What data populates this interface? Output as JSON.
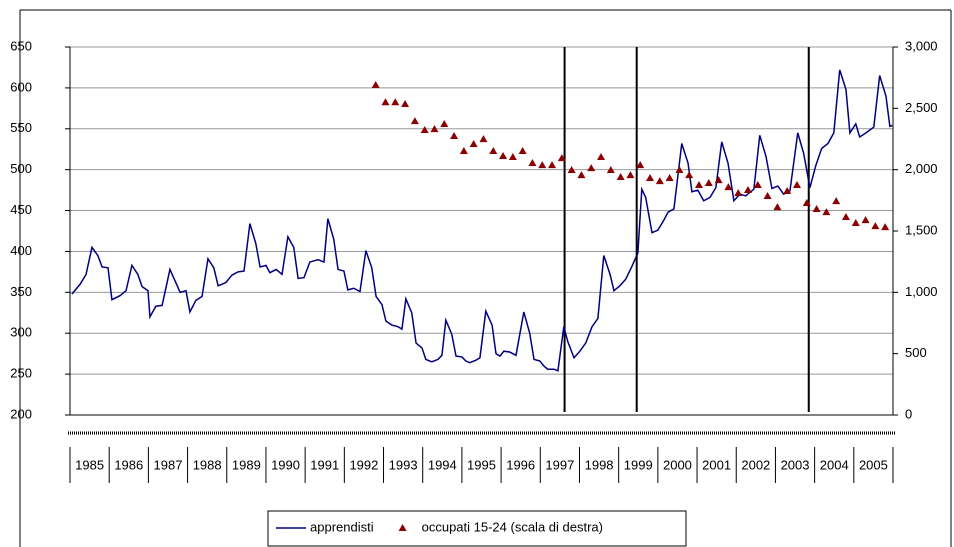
{
  "chart_data": {
    "type": "line",
    "categories": [
      "1985",
      "1986",
      "1987",
      "1988",
      "1989",
      "1990",
      "1991",
      "1992",
      "1993",
      "1994",
      "1995",
      "1996",
      "1997",
      "1998",
      "1999",
      "2000",
      "2001",
      "2002",
      "2003",
      "2004",
      "2005"
    ],
    "xlim": [
      1985,
      2006
    ],
    "ylim": [
      200,
      650
    ],
    "yticks": [
      200,
      250,
      300,
      350,
      400,
      450,
      500,
      550,
      600,
      650
    ],
    "y2lim": [
      0,
      3000
    ],
    "y2ticks": [
      0,
      500,
      {
        "value": 1000,
        "label": "1,000"
      },
      {
        "value": 1500,
        "label": "1,500"
      },
      {
        "value": 2000,
        "label": "2,000"
      },
      {
        "value": 2500,
        "label": "2,500"
      },
      {
        "value": 3000,
        "label": "3,000"
      }
    ],
    "grid": true,
    "vlines": [
      1997.62,
      1999.46,
      2003.85
    ],
    "series": [
      {
        "name": "apprendisti",
        "type": "line",
        "color": "#000080",
        "x": [
          1985.05,
          1985.26,
          1985.41,
          1985.56,
          1985.71,
          1985.82,
          1985.97,
          1986.07,
          1986.28,
          1986.43,
          1986.58,
          1986.73,
          1986.84,
          1986.99,
          1987.04,
          1987.19,
          1987.35,
          1987.55,
          1987.7,
          1987.81,
          1987.96,
          1988.06,
          1988.21,
          1988.37,
          1988.52,
          1988.67,
          1988.78,
          1988.98,
          1989.13,
          1989.29,
          1989.44,
          1989.59,
          1989.74,
          1989.85,
          1990,
          1990.1,
          1990.26,
          1990.41,
          1990.56,
          1990.71,
          1990.82,
          1990.97,
          1991.12,
          1991.33,
          1991.48,
          1991.58,
          1991.73,
          1991.84,
          1991.99,
          1992.09,
          1992.24,
          1992.4,
          1992.55,
          1992.7,
          1992.81,
          1992.96,
          1993.06,
          1993.21,
          1993.37,
          1993.47,
          1993.57,
          1993.72,
          1993.83,
          1993.98,
          1994.08,
          1994.23,
          1994.39,
          1994.49,
          1994.59,
          1994.74,
          1994.85,
          1995,
          1995.1,
          1995.2,
          1995.36,
          1995.46,
          1995.61,
          1995.77,
          1995.87,
          1995.97,
          1996.07,
          1996.22,
          1996.38,
          1996.58,
          1996.73,
          1996.84,
          1996.99,
          1997.09,
          1997.19,
          1997.35,
          1997.45,
          1997.6,
          1997.7,
          1997.86,
          1998.01,
          1998.16,
          1998.32,
          1998.47,
          1998.62,
          1998.78,
          1998.88,
          1999.03,
          1999.18,
          1999.34,
          1999.49,
          1999.59,
          1999.69,
          1999.85,
          2000,
          2000.15,
          2000.26,
          2000.41,
          2000.61,
          2000.77,
          2000.87,
          2001.02,
          2001.17,
          2001.33,
          2001.48,
          2001.63,
          2001.79,
          2001.94,
          2002.09,
          2002.24,
          2002.45,
          2002.6,
          2002.76,
          2002.91,
          2003.06,
          2003.21,
          2003.37,
          2003.57,
          2003.72,
          2003.88,
          2004.03,
          2004.18,
          2004.34,
          2004.49,
          2004.64,
          2004.8,
          2004.9,
          2005.05,
          2005.15,
          2005.31,
          2005.51,
          2005.66,
          2005.82,
          2005.92,
          2005.98
        ],
        "values": [
          348,
          360,
          372,
          405,
          395,
          381,
          380,
          341,
          346,
          352,
          383,
          372,
          357,
          352,
          320,
          333,
          334,
          378,
          362,
          350,
          352,
          326,
          340,
          345,
          391,
          380,
          358,
          362,
          371,
          375,
          376,
          434,
          410,
          381,
          383,
          374,
          378,
          372,
          418,
          405,
          367,
          368,
          387,
          390,
          387,
          440,
          415,
          378,
          376,
          353,
          355,
          351,
          401,
          380,
          345,
          335,
          315,
          310,
          308,
          305,
          342,
          325,
          288,
          282,
          268,
          265,
          268,
          273,
          316,
          299,
          272,
          271,
          266,
          264,
          267,
          270,
          327,
          310,
          275,
          272,
          278,
          277,
          273,
          326,
          300,
          268,
          266,
          260,
          256,
          256,
          254,
          308,
          290,
          270,
          278,
          288,
          308,
          318,
          395,
          372,
          352,
          358,
          366,
          382,
          398,
          476,
          466,
          423,
          426,
          438,
          448,
          452,
          532,
          508,
          473,
          475,
          462,
          466,
          478,
          534,
          508,
          462,
          470,
          468,
          476,
          542,
          516,
          477,
          480,
          470,
          474,
          545,
          520,
          478,
          505,
          526,
          532,
          545,
          622,
          598,
          545,
          556,
          540,
          545,
          552,
          615,
          590,
          553,
          554
        ]
      },
      {
        "name": "occupati 15-24 (scala di destra)",
        "type": "scatter",
        "axis": "y2",
        "color": "#8b0000",
        "x": [
          1992.8,
          1993.05,
          1993.3,
          1993.55,
          1993.8,
          1994.05,
          1994.3,
          1994.55,
          1994.8,
          1995.05,
          1995.3,
          1995.55,
          1995.8,
          1996.05,
          1996.3,
          1996.55,
          1996.8,
          1997.05,
          1997.3,
          1997.55,
          1997.8,
          1998.05,
          1998.3,
          1998.55,
          1998.8,
          1999.05,
          1999.3,
          1999.55,
          1999.8,
          2000.05,
          2000.3,
          2000.55,
          2000.8,
          2001.05,
          2001.3,
          2001.55,
          2001.8,
          2002.05,
          2002.3,
          2002.55,
          2002.8,
          2003.05,
          2003.3,
          2003.55,
          2003.8,
          2004.05,
          2004.3,
          2004.55,
          2004.8,
          2005.05,
          2005.3,
          2005.55,
          2005.8
        ],
        "values": [
          2690,
          2550,
          2550,
          2535,
          2396,
          2323,
          2331,
          2372,
          2274,
          2152,
          2209,
          2249,
          2152,
          2111,
          2103,
          2152,
          2054,
          2037,
          2037,
          2094,
          1997,
          1956,
          2013,
          2103,
          1997,
          1940,
          1956,
          2037,
          1932,
          1907,
          1932,
          1997,
          1956,
          1875,
          1891,
          1915,
          1858,
          1809,
          1834,
          1875,
          1785,
          1695,
          1826,
          1875,
          1728,
          1679,
          1654,
          1744,
          1614,
          1565,
          1589,
          1540,
          1532
        ]
      }
    ]
  }
}
